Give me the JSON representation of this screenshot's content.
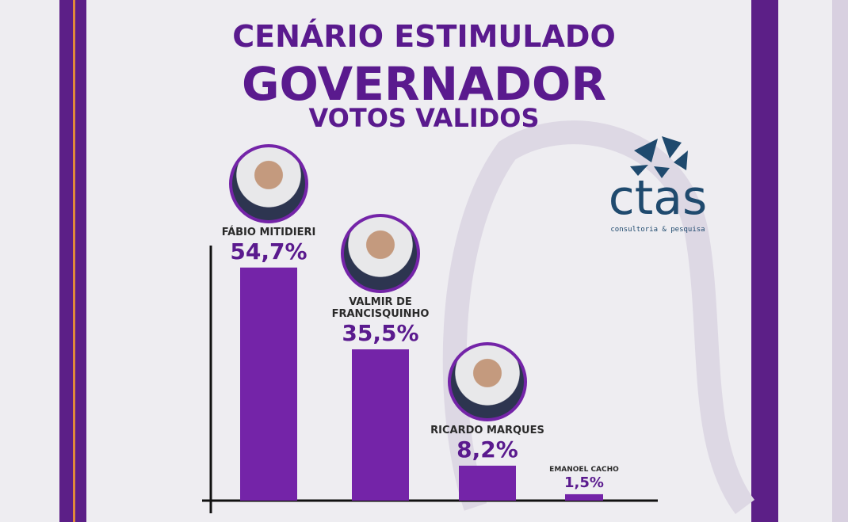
{
  "chart_data": {
    "type": "bar",
    "title": "CENÁRIO ESTIMULADO",
    "subtitle": "GOVERNADOR",
    "annotation": "VOTOS VALIDOS",
    "categories": [
      "FÁBIO MITIDIERI",
      "VALMIR DE FRANCISQUINHO",
      "RICARDO MARQUES",
      "EMANOEL CACHO"
    ],
    "values": [
      54.7,
      35.5,
      8.2,
      1.5
    ],
    "value_labels": [
      "54,7%",
      "35,5%",
      "8,2%",
      "1,5%"
    ],
    "color": "#7424a8",
    "ylim": [
      0,
      58
    ]
  },
  "logo": {
    "name": "ctas",
    "tagline": "consultoria & pesquisa"
  }
}
